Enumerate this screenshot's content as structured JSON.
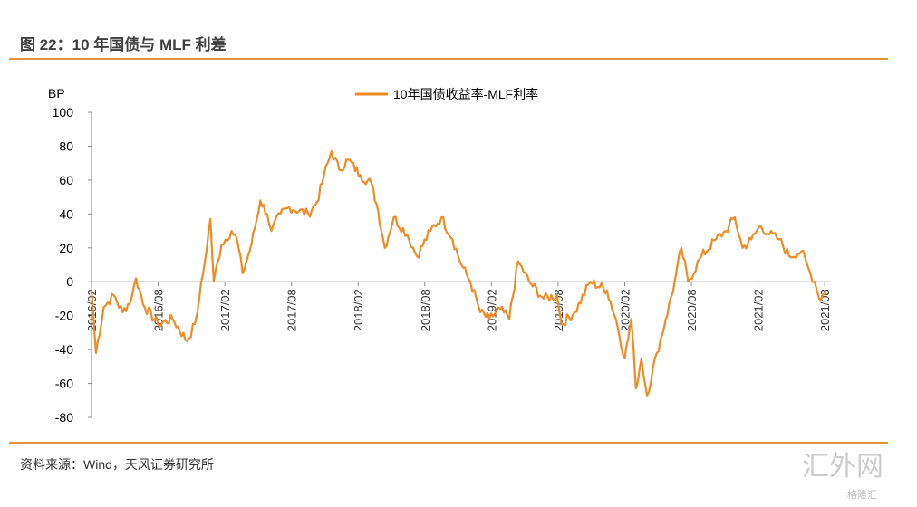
{
  "title": "图 22：10 年国债与 MLF 利差",
  "source": "资料来源：Wind，天风证券研究所",
  "watermark": "汇外网",
  "watermark_sub": "格隆汇",
  "chart_data": {
    "type": "line",
    "ylabel": "BP",
    "ylim": [
      -80,
      100
    ],
    "yticks": [
      100,
      80,
      60,
      40,
      20,
      0,
      -20,
      -40,
      -60,
      -80
    ],
    "xticks": [
      "2016/02",
      "2016/08",
      "2017/02",
      "2017/08",
      "2018/02",
      "2018/08",
      "2019/02",
      "2019/08",
      "2020/02",
      "2020/08",
      "2021/02",
      "2021/08"
    ],
    "x_unit": "months since 2016/02",
    "legend": "top-center",
    "color": "#f08a24",
    "series": [
      {
        "name": "10年国债收益率-MLF利率",
        "points": [
          [
            0,
            -5
          ],
          [
            0.4,
            -42
          ],
          [
            1.1,
            -15
          ],
          [
            2,
            -8
          ],
          [
            2.8,
            -18
          ],
          [
            3.6,
            -10
          ],
          [
            4,
            2
          ],
          [
            4.8,
            -15
          ],
          [
            6,
            -25
          ],
          [
            7.3,
            -22
          ],
          [
            8.6,
            -35
          ],
          [
            9.3,
            -25
          ],
          [
            9.7,
            -10
          ],
          [
            10.2,
            12
          ],
          [
            10.7,
            37
          ],
          [
            11,
            0
          ],
          [
            11.7,
            22
          ],
          [
            12.6,
            30
          ],
          [
            13.1,
            25
          ],
          [
            13.6,
            5
          ],
          [
            14.4,
            22
          ],
          [
            15.2,
            48
          ],
          [
            15.8,
            40
          ],
          [
            16.2,
            30
          ],
          [
            17,
            40
          ],
          [
            17.8,
            44
          ],
          [
            19.5,
            40
          ],
          [
            20.3,
            47
          ],
          [
            20.9,
            62
          ],
          [
            21.6,
            77
          ],
          [
            22.3,
            66
          ],
          [
            23.1,
            72
          ],
          [
            24.2,
            63
          ],
          [
            25.2,
            58
          ],
          [
            25.8,
            42
          ],
          [
            26.4,
            20
          ],
          [
            27.2,
            38
          ],
          [
            28.4,
            28
          ],
          [
            29.3,
            15
          ],
          [
            30.5,
            30
          ],
          [
            31.5,
            38
          ],
          [
            32.5,
            25
          ],
          [
            33.3,
            10
          ],
          [
            34.1,
            0
          ],
          [
            35,
            -18
          ],
          [
            35.8,
            -22
          ],
          [
            36.8,
            -16
          ],
          [
            37.6,
            -22
          ],
          [
            38.4,
            12
          ],
          [
            39.4,
            0
          ],
          [
            40.7,
            -10
          ],
          [
            41.9,
            -8
          ],
          [
            42.3,
            -25
          ],
          [
            43.5,
            -18
          ],
          [
            44.9,
            0
          ],
          [
            46.4,
            -5
          ],
          [
            47.2,
            -22
          ],
          [
            48,
            -45
          ],
          [
            48.6,
            -22
          ],
          [
            49,
            -63
          ],
          [
            49.5,
            -45
          ],
          [
            50,
            -67
          ],
          [
            50.9,
            -42
          ],
          [
            51.7,
            -22
          ],
          [
            52.5,
            0
          ],
          [
            53.1,
            20
          ],
          [
            53.7,
            0
          ],
          [
            54.9,
            15
          ],
          [
            56.2,
            25
          ],
          [
            57.1,
            30
          ],
          [
            57.9,
            38
          ],
          [
            58.6,
            20
          ],
          [
            59.4,
            25
          ],
          [
            60.2,
            33
          ],
          [
            61,
            28
          ],
          [
            61.9,
            25
          ],
          [
            62.8,
            15
          ],
          [
            63.9,
            18
          ],
          [
            64.7,
            5
          ],
          [
            65.1,
            0
          ],
          [
            65.5,
            -10
          ],
          [
            66.1,
            -5
          ]
        ]
      }
    ]
  }
}
